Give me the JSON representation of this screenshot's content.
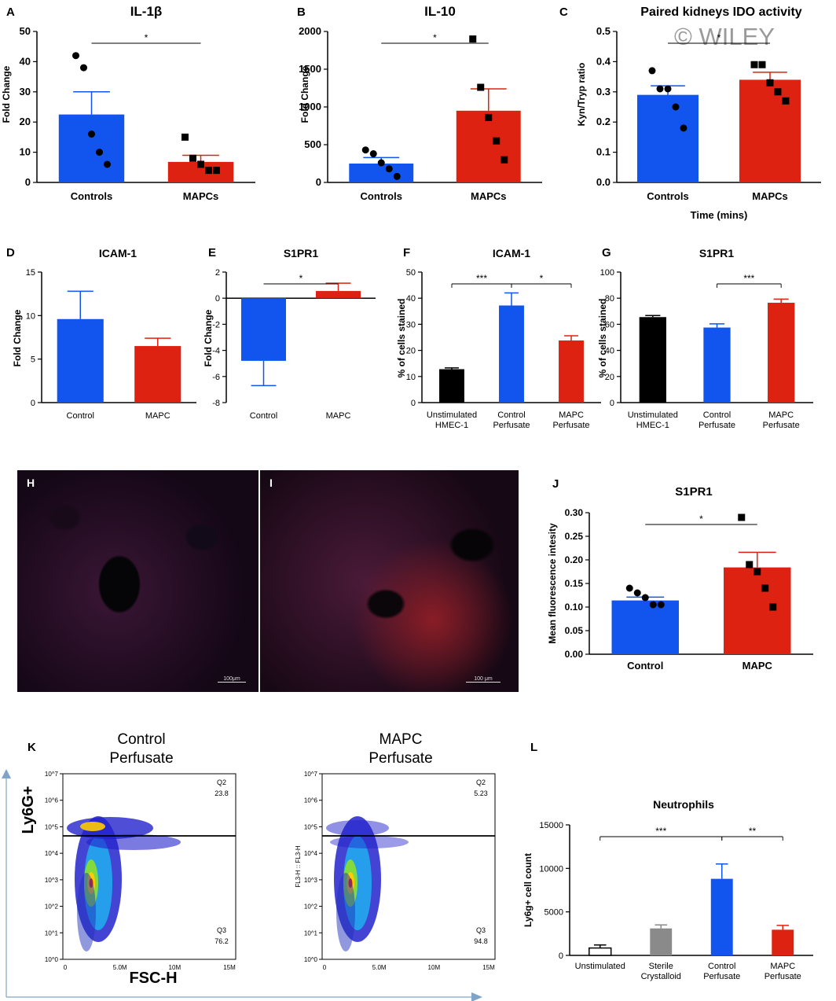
{
  "watermark": "© WILEY",
  "colors": {
    "blue": "#1155ee",
    "red": "#dd2211",
    "black": "#000000",
    "gray": "#8a8a8a",
    "white": "#ffffff"
  },
  "chart_data": [
    {
      "panel": "A",
      "type": "bar",
      "title": "IL-1β",
      "ylabel": "Fold Change",
      "xlabel": "",
      "categories": [
        "Controls",
        "MAPCs"
      ],
      "values": [
        22.5,
        6.8
      ],
      "errors": [
        7.5,
        2.2
      ],
      "ylim": [
        0,
        50
      ],
      "yticks": [
        0,
        10,
        20,
        30,
        40,
        50
      ],
      "points": [
        [
          42,
          38,
          16,
          10,
          6
        ],
        [
          15,
          8,
          6,
          4,
          4
        ]
      ],
      "markers": [
        "circle",
        "square"
      ],
      "significance": [
        {
          "from": 0,
          "to": 1,
          "label": "*"
        }
      ]
    },
    {
      "panel": "B",
      "type": "bar",
      "title": "IL-10",
      "ylabel": "Fold Change",
      "xlabel": "",
      "categories": [
        "Controls",
        "MAPCs"
      ],
      "values": [
        250,
        950
      ],
      "errors": [
        80,
        290
      ],
      "ylim": [
        0,
        2000
      ],
      "yticks": [
        0,
        500,
        1000,
        1500,
        2000
      ],
      "points": [
        [
          430,
          380,
          260,
          180,
          80
        ],
        [
          1900,
          1260,
          860,
          550,
          300
        ]
      ],
      "markers": [
        "circle",
        "square"
      ],
      "significance": [
        {
          "from": 0,
          "to": 1,
          "label": "*"
        }
      ]
    },
    {
      "panel": "C",
      "type": "bar",
      "title": "Paired kidneys IDO activity",
      "ylabel": "Kyn/Tryp ratio",
      "xlabel": "Time (mins)",
      "categories": [
        "Controls",
        "MAPCs"
      ],
      "values": [
        0.29,
        0.34
      ],
      "errors": [
        0.03,
        0.025
      ],
      "ylim": [
        0,
        0.5
      ],
      "yticks": [
        "0.0",
        "0.1",
        "0.2",
        "0.3",
        "0.4",
        "0.5"
      ],
      "points": [
        [
          0.37,
          0.31,
          0.31,
          0.25,
          0.18
        ],
        [
          0.39,
          0.39,
          0.33,
          0.3,
          0.27
        ]
      ],
      "markers": [
        "circle",
        "square"
      ],
      "significance": [
        {
          "from": 0,
          "to": 1,
          "label": "*"
        }
      ]
    },
    {
      "panel": "D",
      "type": "bar",
      "title": "ICAM-1",
      "ylabel": "Fold Change",
      "xlabel": "",
      "categories": [
        "Control",
        "MAPC"
      ],
      "values": [
        9.6,
        6.5
      ],
      "errors": [
        3.2,
        0.9
      ],
      "ylim": [
        0,
        15
      ],
      "yticks": [
        0,
        5,
        10,
        15
      ],
      "points": [],
      "markers": [],
      "significance": []
    },
    {
      "panel": "E",
      "type": "bar",
      "title": "S1PR1",
      "ylabel": "Fold Change",
      "xlabel": "",
      "categories": [
        "Control",
        "MAPC"
      ],
      "values": [
        -4.8,
        0.55
      ],
      "errors": [
        1.9,
        0.6
      ],
      "ylim": [
        -8,
        2
      ],
      "yticks": [
        -8,
        -6,
        -4,
        -2,
        0,
        2
      ],
      "points": [],
      "markers": [],
      "significance": [
        {
          "from": 0,
          "to": 1,
          "label": "*"
        }
      ]
    },
    {
      "panel": "F",
      "type": "bar",
      "title": "ICAM-1",
      "ylabel": "% of cells stained",
      "xlabel": "",
      "categories": [
        "Unstimulated HMEC-1",
        "Control Perfusate",
        "MAPC Perfusate"
      ],
      "values": [
        12.8,
        37.2,
        23.8
      ],
      "errors": [
        0.5,
        4.8,
        1.8
      ],
      "ylim": [
        0,
        50
      ],
      "yticks": [
        0,
        10,
        20,
        30,
        40,
        50
      ],
      "points": [],
      "markers": [],
      "significance": [
        {
          "from": 0,
          "to": 1,
          "label": "***"
        },
        {
          "from": 1,
          "to": 2,
          "label": "*"
        }
      ]
    },
    {
      "panel": "G",
      "type": "bar",
      "title": "S1PR1",
      "ylabel": "% of cells stained",
      "xlabel": "",
      "categories": [
        "Unstimulated HMEC-1",
        "Control Perfusate",
        "MAPC Perfusate"
      ],
      "values": [
        65.5,
        57.5,
        76.5
      ],
      "errors": [
        1.2,
        2.8,
        2.8
      ],
      "ylim": [
        0,
        100
      ],
      "yticks": [
        0,
        20,
        40,
        60,
        80,
        100
      ],
      "points": [],
      "markers": [],
      "significance": [
        {
          "from": 1,
          "to": 2,
          "label": "***"
        }
      ]
    },
    {
      "panel": "J",
      "type": "bar",
      "title": "S1PR1",
      "ylabel": "Mean fluorescence intesity",
      "xlabel": "",
      "categories": [
        "Control",
        "MAPC"
      ],
      "values": [
        0.114,
        0.184
      ],
      "errors": [
        0.007,
        0.032
      ],
      "ylim": [
        0,
        0.3
      ],
      "yticks": [
        "0.00",
        "0.05",
        "0.10",
        "0.15",
        "0.20",
        "0.25",
        "0.30"
      ],
      "points": [
        [
          0.14,
          0.13,
          0.12,
          0.105,
          0.105
        ],
        [
          0.29,
          0.19,
          0.175,
          0.14,
          0.1
        ]
      ],
      "markers": [
        "circle",
        "square"
      ],
      "significance": [
        {
          "from": 0,
          "to": 1,
          "label": "*"
        }
      ]
    },
    {
      "panel": "L",
      "type": "bar",
      "title": "Neutrophils",
      "ylabel": "Ly6g+ cell count",
      "xlabel": "",
      "categories": [
        "Unstimulated",
        "Sterile Crystalloid",
        "Control Perfusate",
        "MAPC Perfusate"
      ],
      "values": [
        850,
        3100,
        8800,
        2950
      ],
      "errors": [
        350,
        400,
        1700,
        500
      ],
      "ylim": [
        0,
        15000
      ],
      "yticks": [
        0,
        5000,
        10000,
        15000
      ],
      "points": [],
      "markers": [],
      "significance": [
        {
          "from": 0,
          "to": 2,
          "label": "***"
        },
        {
          "from": 2,
          "to": 3,
          "label": "**"
        }
      ]
    },
    {
      "panel": "K",
      "type": "scatter",
      "title": "",
      "ylabel": "Ly6G+",
      "xlabel": "FSC-H",
      "plots": [
        {
          "title": "Control Perfusate",
          "ylabel": "",
          "quadrants": [
            {
              "label": "Q2",
              "value": "23.8"
            },
            {
              "label": "Q3",
              "value": "76.2"
            }
          ]
        },
        {
          "title": "MAPC Perfusate",
          "ylabel": "FL3-H :: FL3-H",
          "quadrants": [
            {
              "label": "Q2",
              "value": "5.23"
            },
            {
              "label": "Q3",
              "value": "94.8"
            }
          ]
        }
      ],
      "xticks": [
        "0",
        "5.0M",
        "10M",
        "15M"
      ],
      "yticks": [
        "10^0",
        "10^1",
        "10^2",
        "10^3",
        "10^4",
        "10^5",
        "10^6",
        "10^7"
      ]
    }
  ],
  "micrographs": [
    {
      "panel": "H",
      "scale": "100μm"
    },
    {
      "panel": "I",
      "scale": "100 μm"
    }
  ],
  "labels": {
    "A": "A",
    "B": "B",
    "C": "C",
    "D": "D",
    "E": "E",
    "F": "F",
    "G": "G",
    "H": "H",
    "I": "I",
    "J": "J",
    "K": "K",
    "L": "L"
  }
}
